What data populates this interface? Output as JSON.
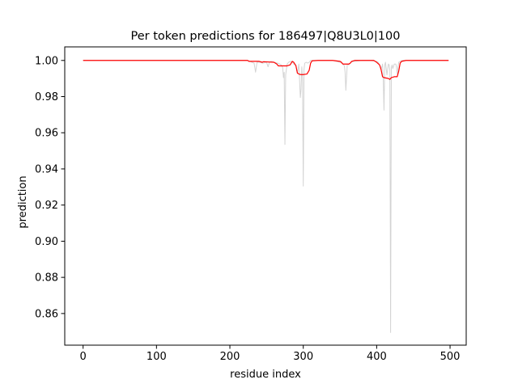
{
  "chart_data": {
    "type": "line",
    "title": "Per token predictions for 186497|Q8U3L0|100",
    "xlabel": "residue index",
    "ylabel": "prediction",
    "xlim": [
      -25,
      522
    ],
    "ylim": [
      0.8425,
      1.0075
    ],
    "xticks": [
      0,
      100,
      200,
      300,
      400,
      500
    ],
    "yticks": [
      0.86,
      0.88,
      0.9,
      0.92,
      0.94,
      0.96,
      0.98,
      1.0
    ],
    "ytick_labels": [
      "0.86",
      "0.88",
      "0.90",
      "0.92",
      "0.94",
      "0.96",
      "0.98",
      "1.00"
    ],
    "grid": false,
    "series": [
      {
        "role": "raw",
        "color": "#d3d3d3",
        "x": [
          0,
          50,
          100,
          150,
          200,
          225,
          230,
          233,
          235,
          237,
          240,
          245,
          250,
          252,
          254,
          256,
          260,
          265,
          268,
          270,
          272,
          273,
          274,
          275,
          276,
          278,
          280,
          283,
          285,
          287,
          290,
          292,
          294,
          296,
          297,
          298,
          299,
          300,
          301,
          302,
          304,
          306,
          308,
          310,
          315,
          320,
          330,
          340,
          350,
          352,
          354,
          356,
          357,
          358,
          360,
          362,
          365,
          368,
          370,
          380,
          390,
          400,
          402,
          404,
          406,
          408,
          409,
          410,
          411,
          412,
          414,
          416,
          417,
          418,
          419,
          420,
          421,
          422,
          424,
          426,
          427,
          428,
          430,
          432,
          435,
          440,
          450,
          460,
          470,
          480,
          490,
          498
        ],
        "y": [
          1.0,
          1.0,
          1.0,
          1.0,
          1.0,
          1.0,
          0.999,
          0.9985,
          0.9935,
          0.999,
          0.999,
          0.9985,
          0.999,
          0.9965,
          0.999,
          0.9995,
          0.999,
          0.9985,
          0.998,
          0.9975,
          0.996,
          0.9905,
          0.9935,
          0.9535,
          0.992,
          0.998,
          0.999,
          0.9995,
          0.999,
          0.998,
          0.9975,
          0.993,
          0.998,
          0.9795,
          0.984,
          0.9965,
          0.99,
          0.9305,
          0.995,
          0.9985,
          0.999,
          0.9985,
          0.999,
          1.0,
          1.0,
          1.0,
          1.0,
          1.0,
          0.999,
          0.9985,
          0.998,
          0.997,
          0.9935,
          0.9835,
          0.998,
          0.9975,
          0.999,
          0.9995,
          0.9995,
          1.0,
          1.0,
          0.9995,
          0.999,
          0.9975,
          0.995,
          0.998,
          0.989,
          0.9725,
          0.9975,
          0.999,
          0.992,
          0.998,
          0.9975,
          0.9945,
          0.8495,
          0.996,
          0.9975,
          0.9955,
          0.998,
          0.998,
          0.9965,
          0.9925,
          0.999,
          0.9995,
          1.0,
          1.0,
          1.0,
          1.0,
          1.0,
          1.0,
          1.0,
          1.0
        ]
      },
      {
        "role": "smoothed",
        "color": "#ff0000",
        "x": [
          0,
          50,
          100,
          150,
          200,
          224,
          226,
          240,
          244,
          246,
          250,
          260,
          262,
          264,
          266,
          268,
          272,
          278,
          282,
          285,
          287,
          290,
          292,
          294,
          296,
          300,
          305,
          308,
          310,
          312,
          320,
          340,
          350,
          352,
          354,
          358,
          362,
          364,
          366,
          370,
          390,
          396,
          398,
          400,
          404,
          406,
          408,
          410,
          416,
          418,
          420,
          424,
          428,
          430,
          432,
          434,
          440,
          460,
          480,
          498
        ],
        "y": [
          1.0,
          1.0,
          1.0,
          1.0,
          1.0,
          1.0,
          0.9995,
          0.9995,
          0.999,
          0.9993,
          0.9992,
          0.999,
          0.9985,
          0.998,
          0.997,
          0.997,
          0.997,
          0.997,
          0.9975,
          0.9995,
          0.999,
          0.997,
          0.993,
          0.9925,
          0.9922,
          0.9922,
          0.9925,
          0.9945,
          0.9985,
          0.9998,
          1.0,
          1.0,
          0.9995,
          0.999,
          0.998,
          0.998,
          0.998,
          0.9985,
          0.9995,
          1.0,
          1.0,
          1.0,
          0.9995,
          0.999,
          0.9975,
          0.995,
          0.991,
          0.9905,
          0.99,
          0.9895,
          0.9905,
          0.991,
          0.991,
          0.994,
          0.9985,
          0.9995,
          1.0,
          1.0,
          1.0,
          1.0
        ]
      }
    ]
  }
}
